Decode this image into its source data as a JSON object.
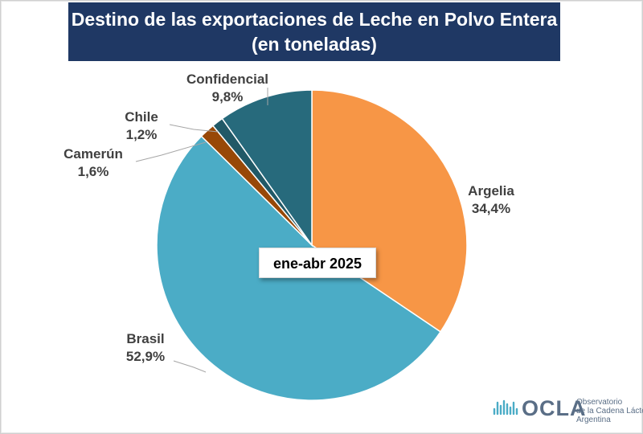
{
  "chart_data": {
    "type": "pie",
    "title_line1": "Destino de las exportaciones de Leche en Polvo Entera",
    "title_line2": "(en toneladas)",
    "annotation": "ene-abr 2025",
    "slices": [
      {
        "label": "Argelia",
        "value": 34.4,
        "display": "34,4%",
        "color": "#f79646"
      },
      {
        "label": "Brasil",
        "value": 52.9,
        "display": "52,9%",
        "color": "#4bacc6"
      },
      {
        "label": "Camerún",
        "value": 1.6,
        "display": "1,6%",
        "color": "#984807"
      },
      {
        "label": "Chile",
        "value": 1.2,
        "display": "1,2%",
        "color": "#215967"
      },
      {
        "label": "Confidencial",
        "value": 9.8,
        "display": "9,8%",
        "color": "#276a7c"
      }
    ]
  },
  "logo": {
    "name": "OCLA",
    "line1": "Observatorio",
    "line2": "de la Cadena Láctea",
    "line3": "Argentina"
  }
}
